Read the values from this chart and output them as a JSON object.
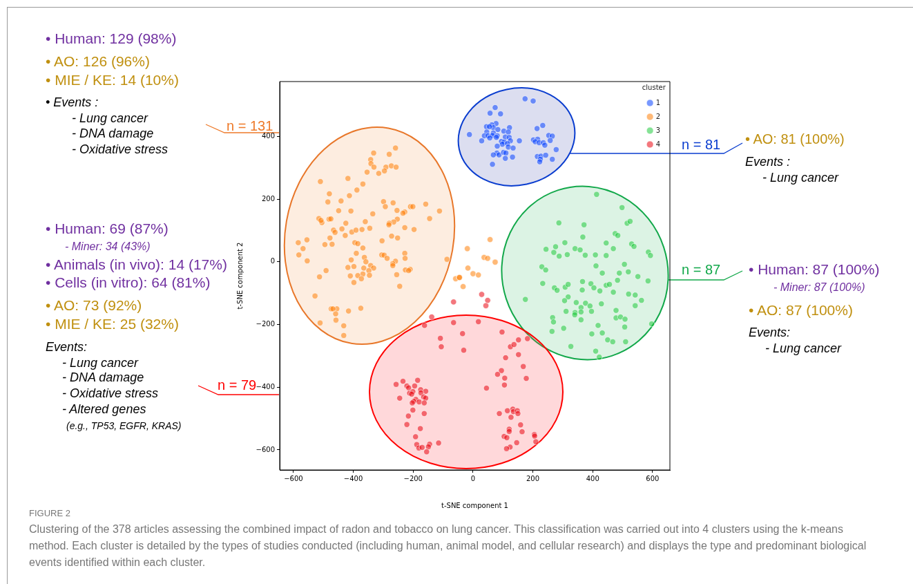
{
  "chart_data": {
    "type": "scatter",
    "xlabel": "t-SNE component 1",
    "ylabel": "t-SNE component 2",
    "legend_title": "cluster",
    "legend": "top right",
    "marker": "circle",
    "grid": false,
    "xlim": [
      -646,
      658
    ],
    "ylim": [
      -664,
      575
    ],
    "xticks": [
      {
        "value": -600,
        "label": "−600"
      },
      {
        "value": -400,
        "label": "−400"
      },
      {
        "value": -200,
        "label": "−200"
      },
      0,
      200,
      400,
      600
    ],
    "yticks": [
      {
        "value": -600,
        "label": "−600"
      },
      {
        "value": -400,
        "label": "−400"
      },
      {
        "value": -200,
        "label": "−200"
      },
      0,
      200,
      400
    ],
    "series": [
      {
        "name": "1",
        "color": "#023eff",
        "x": [
          174,
          201,
          74,
          57,
          92,
          77,
          63,
          45,
          68,
          55,
          83,
          103,
          122,
          118,
          46,
          68,
          38,
          50,
          65,
          81,
          56,
          78,
          108,
          121,
          -12,
          29,
          95,
          104,
          125,
          98,
          115,
          81,
          118,
          134,
          155,
          80,
          68,
          87,
          102,
          110,
          108,
          132,
          65,
          214,
          233,
          202,
          216,
          208,
          221,
          235,
          240,
          253,
          265,
          258,
          278,
          215,
          227,
          243,
          265,
          225,
          223
        ],
        "values": [
          520,
          513,
          492,
          474,
          472,
          441,
          437,
          431,
          428,
          431,
          422,
          417,
          428,
          414,
          414,
          411,
          402,
          402,
          403,
          402,
          395,
          397,
          398,
          397,
          406,
          386,
          384,
          382,
          386,
          375,
          377,
          369,
          366,
          363,
          386,
          347,
          341,
          341,
          349,
          347,
          330,
          334,
          311,
          425,
          435,
          389,
          391,
          383,
          380,
          380,
          372,
          403,
          401,
          387,
          358,
          336,
          337,
          340,
          327,
          327,
          319
        ]
      },
      {
        "name": "2",
        "color": "#ff7c00",
        "x": [
          -259,
          -332,
          -280,
          -342,
          -341,
          -331,
          -291,
          -273,
          -257,
          -296,
          -315,
          -354,
          -510,
          -418,
          -368,
          -388,
          -480,
          -413,
          -485,
          -441,
          -299,
          -267,
          -293,
          -209,
          -201,
          -158,
          -112,
          -449,
          -408,
          -254,
          -228,
          -234,
          -335,
          -145,
          -515,
          -505,
          -508,
          -481,
          -475,
          -360,
          -253,
          -265,
          -280,
          -281,
          -425,
          -228,
          -197,
          -345,
          -466,
          -461,
          -438,
          -405,
          -391,
          -371,
          -427,
          -272,
          -252,
          -304,
          -478,
          -584,
          -555,
          -568,
          -495,
          -471,
          -395,
          -385,
          -368,
          -582,
          -554,
          -390,
          -305,
          -297,
          -287,
          -228,
          -227,
          -363,
          -358,
          -407,
          -259,
          -268,
          -268,
          -342,
          -332,
          -418,
          -398,
          -365,
          -348,
          -368,
          -385,
          -410,
          -346,
          -373,
          -398,
          -491,
          -513,
          -255,
          -226,
          -210,
          -215,
          -245,
          -528,
          -474,
          -455,
          -468,
          -459,
          -458,
          -416,
          -375,
          -511,
          -432,
          -432,
          -87,
          -58,
          -46,
          -19,
          57,
          37,
          49,
          74,
          -17,
          0,
          18,
          -45,
          -33
        ],
        "values": [
          363,
          347,
          343,
          326,
          313,
          302,
          302,
          306,
          302,
          290,
          282,
          286,
          256,
          266,
          248,
          229,
          217,
          211,
          191,
          194,
          192,
          188,
          176,
          176,
          176,
          184,
          162,
          163,
          162,
          164,
          159,
          155,
          153,
          138,
          138,
          125,
          132,
          136,
          137,
          128,
          136,
          127,
          123,
          118,
          123,
          109,
          103,
          107,
          101,
          94,
          105,
          95,
          101,
          103,
          84,
          82,
          76,
          67,
          76,
          61,
          70,
          42,
          55,
          56,
          61,
          58,
          44,
          22,
          3,
          27,
          22,
          21,
          11,
          27,
          11,
          14,
          0,
          6,
          2,
          -6,
          -12,
          -12,
          -20,
          -18,
          -15,
          -20,
          -28,
          -39,
          -44,
          -45,
          -43,
          -54,
          -66,
          -28,
          -48,
          -41,
          -26,
          -24,
          -28,
          -78,
          -109,
          -150,
          -150,
          -150,
          -166,
          -186,
          -157,
          -148,
          -195,
          -204,
          -235,
          8,
          -54,
          -50,
          42,
          71,
          14,
          11,
          -1,
          -20,
          -38,
          -42,
          -50,
          -79
        ]
      },
      {
        "name": "3",
        "color": "#1ac938",
        "x": [
          413,
          498,
          287,
          371,
          515,
          525,
          367,
          475,
          484,
          307,
          276,
          244,
          270,
          288,
          315,
          341,
          358,
          375,
          409,
          445,
          469,
          445,
          530,
          538,
          586,
          593,
          230,
          243,
          411,
          432,
          506,
          519,
          489,
          551,
          483,
          585,
          233,
          366,
          394,
          404,
          445,
          456,
          272,
          281,
          308,
          318,
          365,
          424,
          469,
          520,
          542,
          563,
          175,
          318,
          306,
          345,
          376,
          391,
          429,
          361,
          542,
          311,
          341,
          361,
          340,
          396,
          478,
          478,
          493,
          508,
          266,
          269,
          361,
          507,
          597,
          264,
          303,
          418,
          397,
          432,
          450,
          467,
          510,
          327,
          410,
          422
        ],
        "values": [
          215,
          173,
          124,
          118,
          123,
          129,
          79,
          90,
          84,
          61,
          48,
          40,
          30,
          18,
          23,
          42,
          38,
          21,
          22,
          60,
          42,
          20,
          57,
          49,
          31,
          20,
          -16,
          -26,
          -13,
          -36,
          -8,
          -32,
          -36,
          -47,
          -59,
          -61,
          -69,
          -63,
          -70,
          -83,
          -75,
          -72,
          -83,
          -91,
          -81,
          -72,
          -90,
          -93,
          -97,
          -103,
          -106,
          -123,
          -120,
          -112,
          -124,
          -130,
          -132,
          -141,
          -134,
          -146,
          -140,
          -158,
          -162,
          -160,
          -169,
          -158,
          -155,
          -179,
          -176,
          -183,
          -178,
          -192,
          -185,
          -208,
          -198,
          -222,
          -212,
          -203,
          -230,
          -227,
          -249,
          -255,
          -255,
          -270,
          -285,
          -304
        ]
      },
      {
        "name": "4",
        "color": "#e8000b",
        "x": [
          29,
          49,
          43,
          -65,
          -138,
          -162,
          -65,
          18,
          -35,
          -109,
          -106,
          -31,
          97,
          125,
          137,
          152,
          182,
          152,
          109,
          168,
          95,
          82,
          106,
          178,
          105,
          45,
          -257,
          -234,
          -221,
          -215,
          -195,
          -185,
          -175,
          -158,
          -212,
          -201,
          -205,
          -174,
          -165,
          -158,
          -245,
          -191,
          -198,
          -180,
          -203,
          -163,
          -201,
          -163,
          -216,
          -221,
          -176,
          -192,
          -188,
          -181,
          -170,
          -145,
          -149,
          -155,
          -115,
          88,
          115,
          133,
          135,
          148,
          150,
          127,
          159,
          121,
          121,
          164,
          104,
          113,
          205,
          206,
          210,
          146,
          124,
          112
        ],
        "values": [
          -104,
          -123,
          -140,
          -128,
          -176,
          -203,
          -194,
          -191,
          -229,
          -244,
          -271,
          -282,
          -224,
          -271,
          -264,
          -249,
          -245,
          -296,
          -306,
          -334,
          -347,
          -359,
          -371,
          -372,
          -393,
          -403,
          -391,
          -381,
          -396,
          -402,
          -396,
          -378,
          -408,
          -413,
          -419,
          -414,
          -422,
          -418,
          -431,
          -435,
          -435,
          -439,
          -445,
          -447,
          -450,
          -450,
          -473,
          -484,
          -492,
          -519,
          -532,
          -558,
          -583,
          -594,
          -592,
          -582,
          -590,
          -606,
          -578,
          -484,
          -475,
          -470,
          -478,
          -475,
          -484,
          -496,
          -520,
          -534,
          -541,
          -542,
          -557,
          -561,
          -551,
          -556,
          -574,
          -577,
          -591,
          -596
        ]
      }
    ],
    "annotations": [
      "• Human: 129 (98%)",
      "• AO: 126 (96%)",
      "• MIE / KE: 14 (10%)",
      "• Events :",
      "- Lung cancer",
      "- DNA damage",
      "- Oxidative stress",
      "n = 131",
      "• Human: 69 (87%)",
      "- Miner: 34 (43%)",
      "• Animals (in vivo): 14 (17%)",
      "• Cells (in vitro): 64 (81%)",
      "• AO: 73 (92%)",
      "• MIE / KE: 25 (32%)",
      "Events:",
      "- Lung cancer",
      "- DNA damage",
      "- Oxidative stress",
      "- Altered genes",
      "(e.g., TP53, EGFR, KRAS)",
      "n = 79",
      "n = 81",
      "• AO: 81 (100%)",
      "Events :",
      "- Lung cancer",
      "n = 87",
      "• Human: 87 (100%)",
      "- Miner: 87 (100%)",
      "• AO: 87 (100%)",
      "Events:",
      "- Lung cancer",
      "FIGURE 2",
      "Clustering of the 378 articles assessing the combined impact of radon and tobacco on lung cancer. This classification was carried out into 4 clusters using the k-means method. Each cluster is detailed by the types of studies conducted (including human, animal model, and cellular research) and displays the type and predominant biological events identified within each cluster."
    ]
  }
}
